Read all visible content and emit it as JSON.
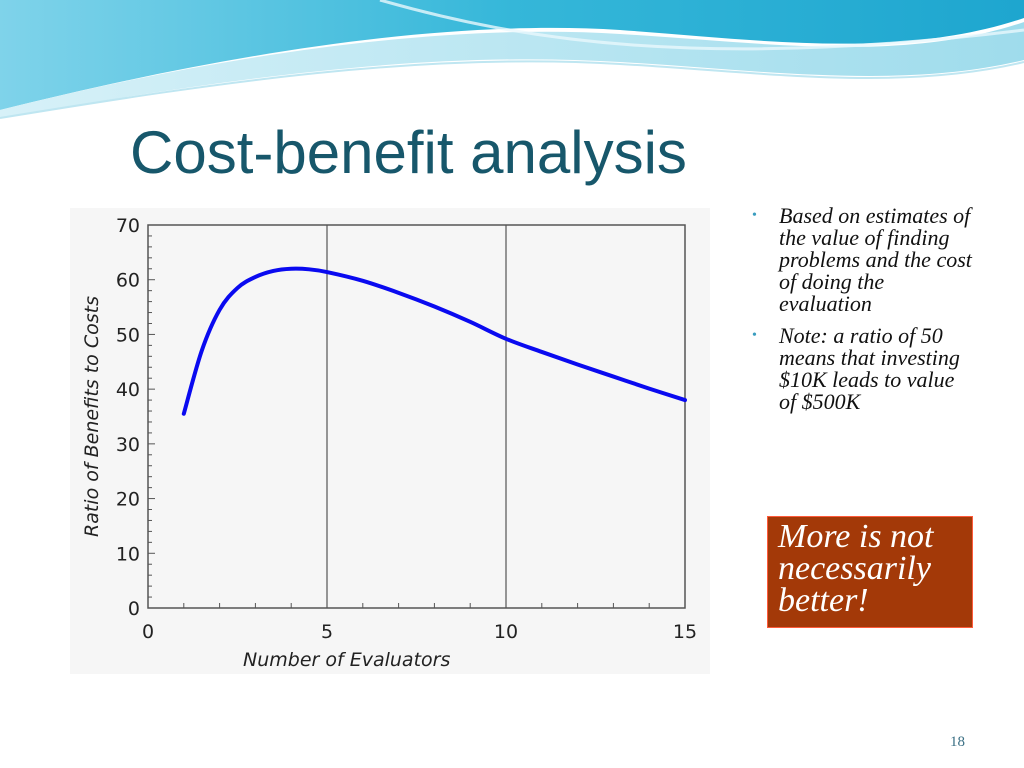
{
  "slide": {
    "title": "Cost-benefit analysis",
    "page_number": "18"
  },
  "bullets": [
    "Based on estimates of the value of finding problems and the cost of doing the evaluation",
    "Note: a ratio of 50 means that investing $10K leads to value of $500K"
  ],
  "callout": {
    "text": "More is not necessarily better!"
  },
  "colors": {
    "title": "#17576b",
    "line": "#0a0af0",
    "callout_fill": "#a33908",
    "bullet": "#3a9dbf"
  },
  "chart_data": {
    "type": "line",
    "xlabel": "Number of Evaluators",
    "ylabel": "Ratio of Benefits to Costs",
    "xlim": [
      0,
      15
    ],
    "ylim": [
      0,
      70
    ],
    "xticks": [
      "0",
      "5",
      "10",
      "15"
    ],
    "yticks": [
      "0",
      "10",
      "20",
      "30",
      "40",
      "50",
      "60",
      "70"
    ],
    "grid": true,
    "series": [
      {
        "x": [
          1,
          1.5,
          2,
          2.5,
          3,
          3.5,
          4,
          4.5,
          5,
          6,
          7,
          8,
          9,
          10,
          11,
          12,
          13,
          14,
          15
        ],
        "values": [
          35.5,
          47,
          54.5,
          58.5,
          60.5,
          61.6,
          62,
          61.9,
          61.4,
          59.8,
          57.6,
          55.1,
          52.3,
          49.2,
          46.8,
          44.5,
          42.3,
          40.1,
          38
        ]
      }
    ]
  }
}
